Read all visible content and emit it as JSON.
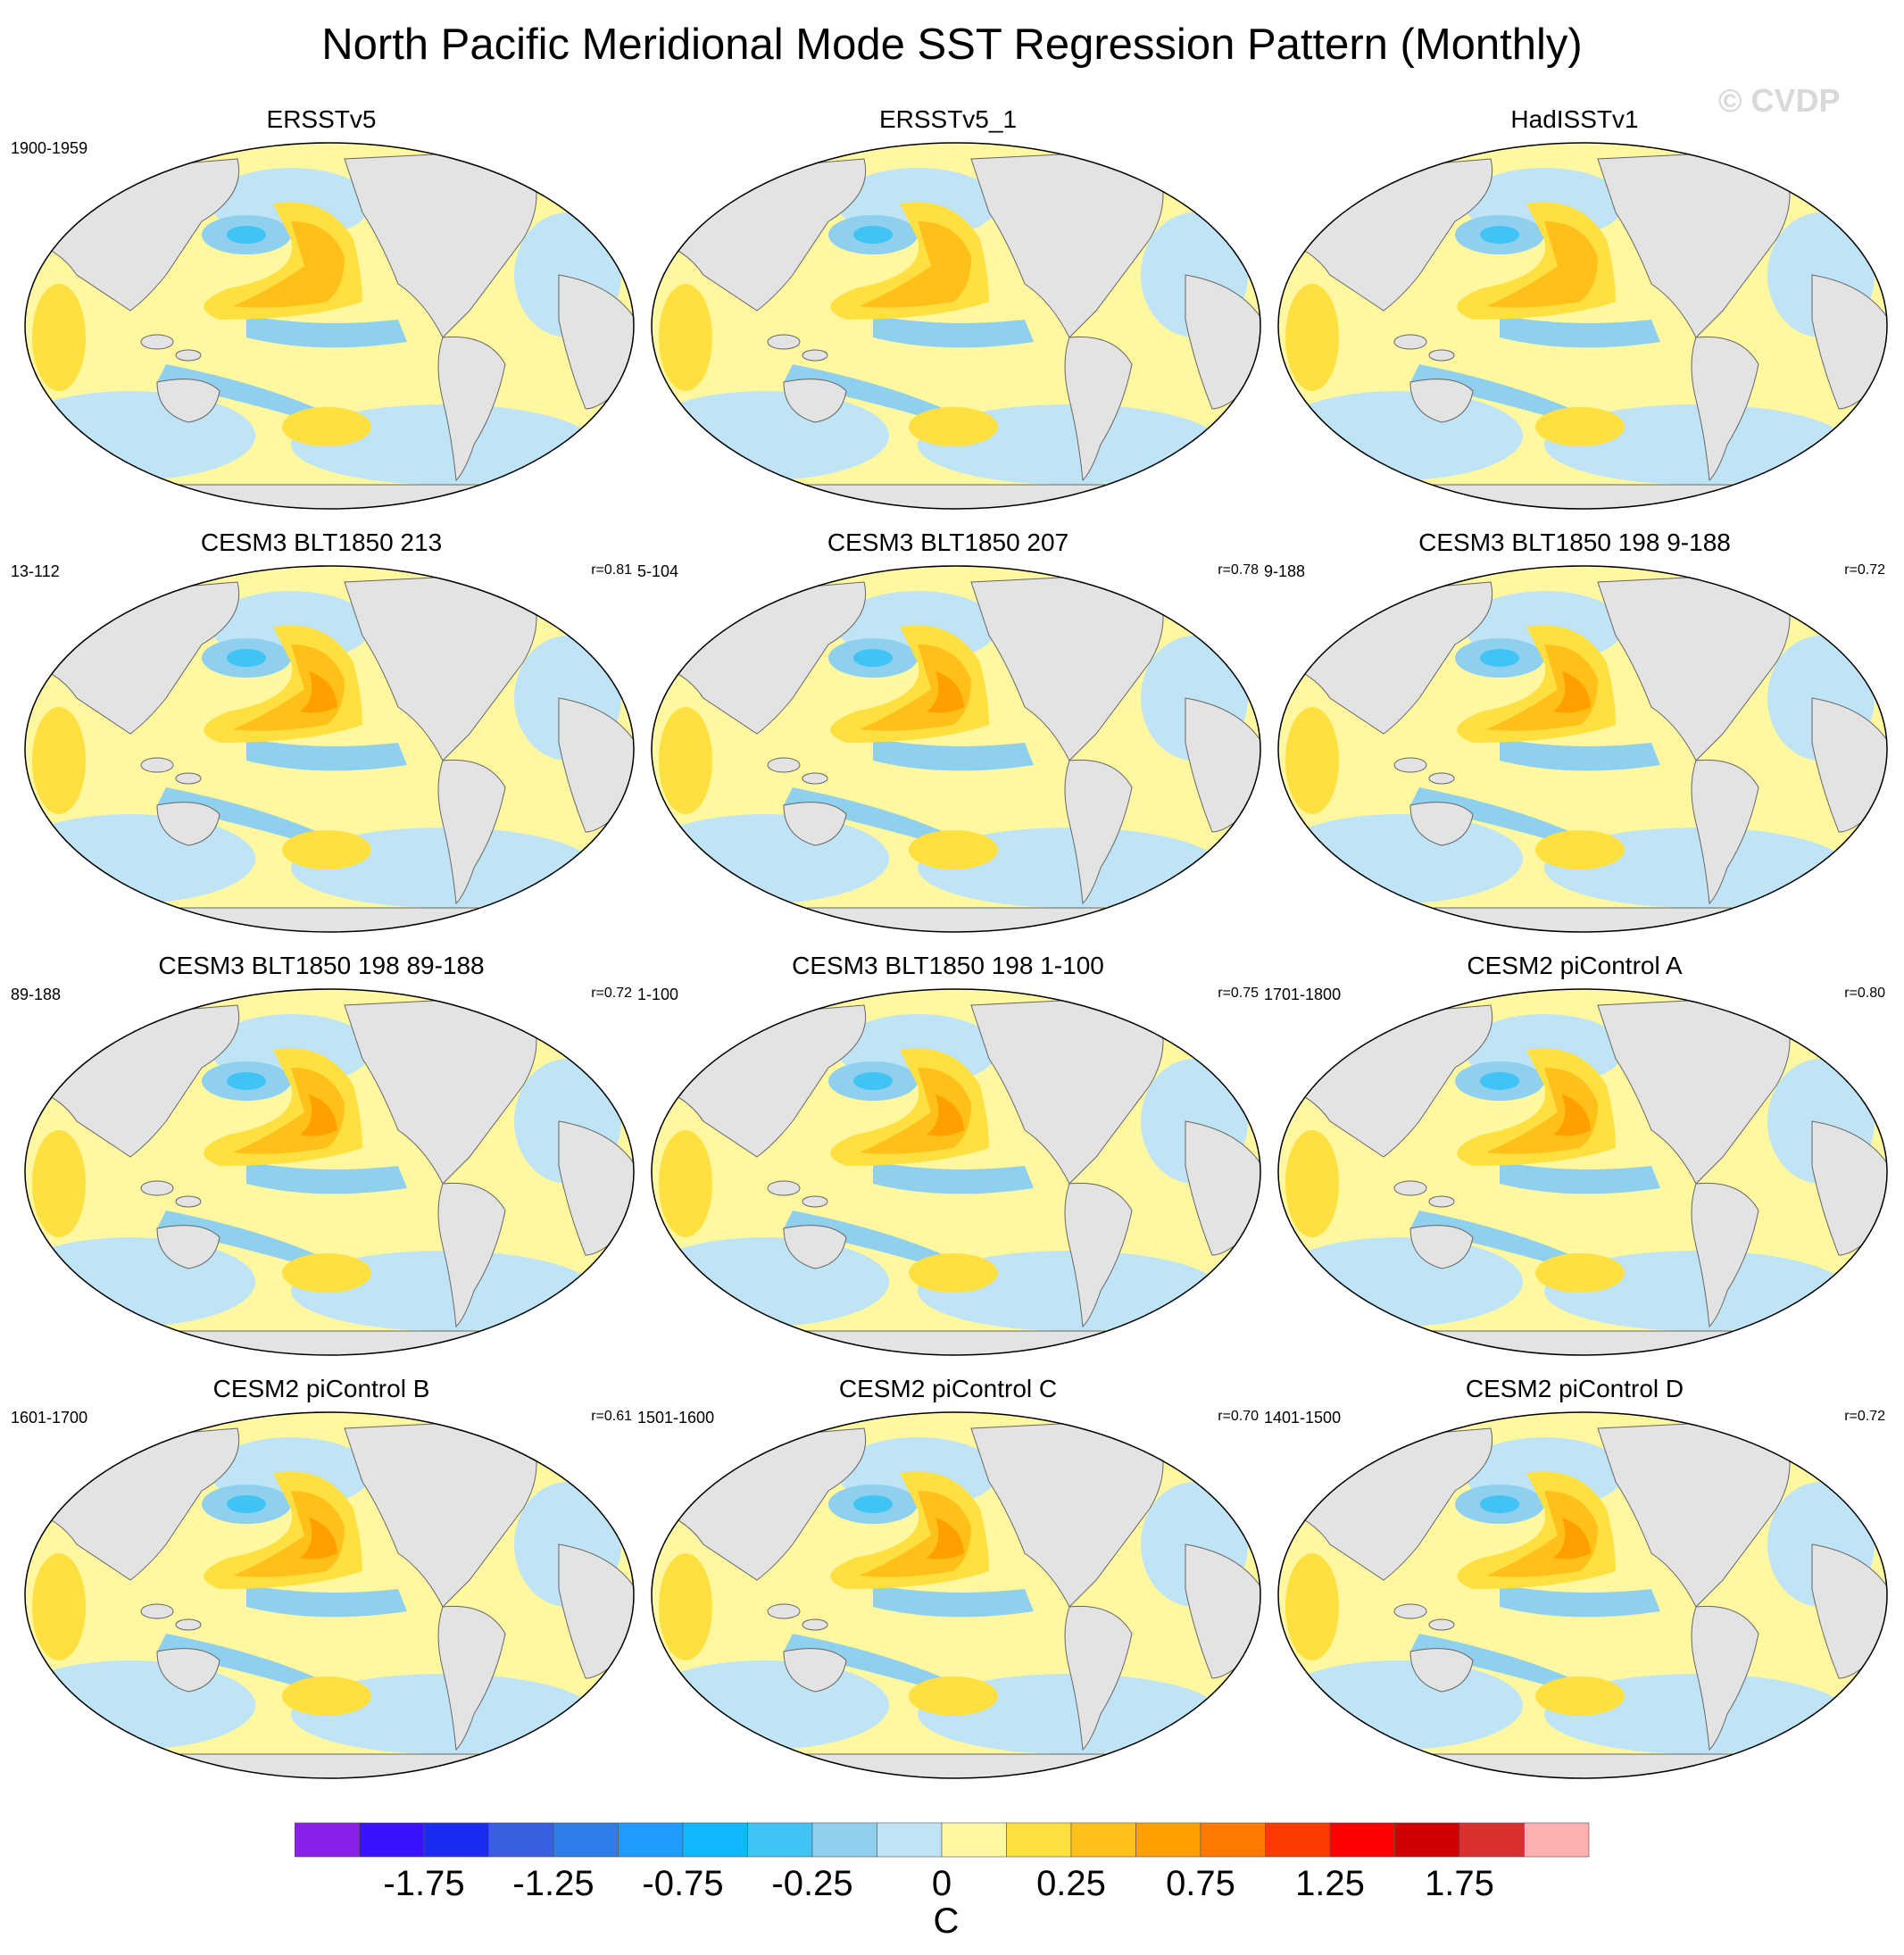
{
  "title": "North Pacific Meridional Mode SST Regression Pattern (Monthly)",
  "copyright": "© CVDP",
  "panels": [
    {
      "title": "ERSSTv5",
      "years": "1900-1959",
      "corr": ""
    },
    {
      "title": "ERSSTv5_1",
      "years": "",
      "corr": ""
    },
    {
      "title": "HadISSTv1",
      "years": "",
      "corr": ""
    },
    {
      "title": "CESM3 BLT1850 213",
      "years": "13-112",
      "corr": "r=0.81"
    },
    {
      "title": "CESM3 BLT1850 207",
      "years": "5-104",
      "corr": "r=0.78"
    },
    {
      "title": "CESM3 BLT1850 198 9-188",
      "years": "9-188",
      "corr": "r=0.72"
    },
    {
      "title": "CESM3 BLT1850 198 89-188",
      "years": "89-188",
      "corr": "r=0.72"
    },
    {
      "title": "CESM3 BLT1850 198 1-100",
      "years": "1-100",
      "corr": "r=0.75"
    },
    {
      "title": "CESM2 piControl A",
      "years": "1701-1800",
      "corr": "r=0.80"
    },
    {
      "title": "CESM2 piControl B",
      "years": "1601-1700",
      "corr": "r=0.61"
    },
    {
      "title": "CESM2 piControl C",
      "years": "1501-1600",
      "corr": "r=0.70"
    },
    {
      "title": "CESM2 piControl D",
      "years": "1401-1500",
      "corr": "r=0.72"
    }
  ],
  "colorbar": {
    "labels": [
      "-1.75",
      "-1.25",
      "-0.75",
      "-0.25",
      "0",
      "0.25",
      "0.75",
      "1.25",
      "1.75"
    ],
    "units": "C",
    "colors": [
      "#8a1fe8",
      "#3a12ff",
      "#1a2cf0",
      "#3a5ee0",
      "#2f7de8",
      "#1f9bff",
      "#0fb7ff",
      "#3fc4f5",
      "#8fd0ee",
      "#bfe4f5",
      "#fff8a0",
      "#ffe040",
      "#ffc01a",
      "#ffa000",
      "#ff7800",
      "#ff3c00",
      "#ff0000",
      "#d10000",
      "#d93030",
      "#ffb0b0"
    ]
  },
  "map_colors": {
    "ocean_cool": "#bfe4f5",
    "ocean_cool2": "#8fd0ee",
    "ocean_cool3": "#3fc4f5",
    "ocean_warm": "#fff8a0",
    "ocean_warm2": "#ffe040",
    "ocean_warm3": "#ffc01a",
    "ocean_warm4": "#ffa000",
    "land": "#e3e3e3"
  }
}
